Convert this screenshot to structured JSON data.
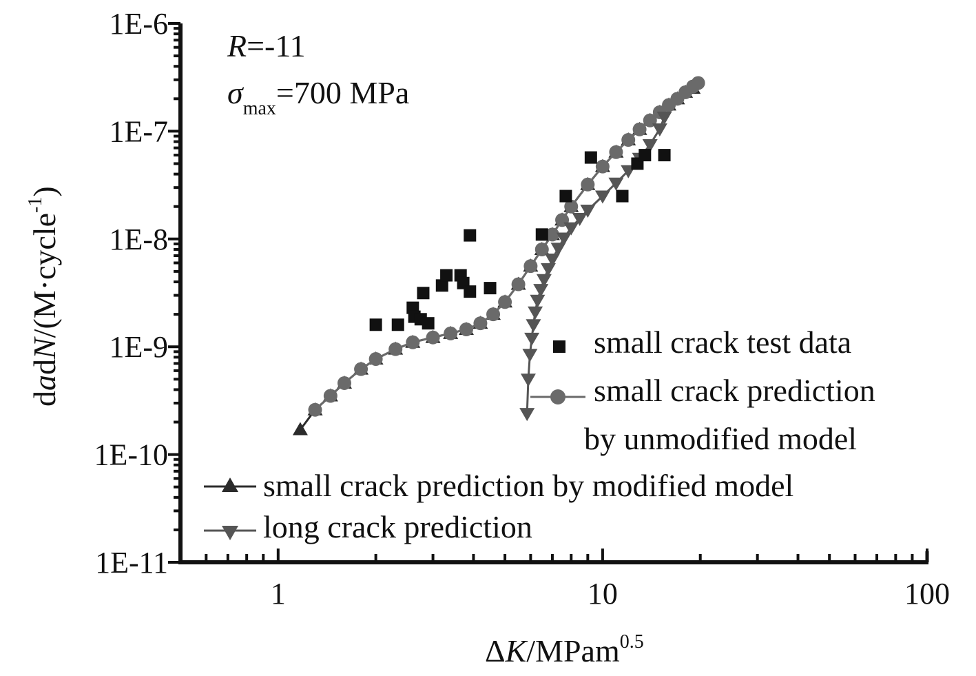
{
  "chart_data": {
    "type": "scatter",
    "xscale": "log",
    "yscale": "log",
    "xlim": [
      0.5,
      100
    ],
    "ylim": [
      1e-11,
      1e-06
    ],
    "x_ticks": [
      {
        "value": 1,
        "label": "1"
      },
      {
        "value": 10,
        "label": "10"
      },
      {
        "value": 100,
        "label": "100"
      }
    ],
    "y_ticks": [
      {
        "value": 1e-06,
        "label": "1E-6"
      },
      {
        "value": 1e-07,
        "label": "1E-7"
      },
      {
        "value": 1e-08,
        "label": "1E-8"
      },
      {
        "value": 1e-09,
        "label": "1E-9"
      },
      {
        "value": 1e-10,
        "label": "1E-10"
      },
      {
        "value": 1e-11,
        "label": "1E-11"
      }
    ],
    "xlabel": {
      "delta": "Δ",
      "var": "K",
      "unit": "/MPam",
      "sup": "0.5"
    },
    "ylabel": {
      "d1": "d",
      "a": "a",
      "d2": "d",
      "n": "N",
      "unit": "/(M·cycle",
      "sup": "-1",
      "close": ")"
    },
    "annotations": {
      "r_var": "R",
      "r_value": "=-11",
      "sigma": "σ",
      "sigma_sub": "max",
      "sigma_value": "=700 MPa"
    },
    "legend": {
      "test": "small crack test data",
      "unmod_1": "small crack prediction",
      "unmod_2": "by unmodified model",
      "modified": "small crack prediction by modified model",
      "long": "long crack prediction"
    },
    "colors": {
      "axis": "#111111",
      "test": "#111111",
      "modified": "#2b2b2b",
      "unmodified": "#6a6a6a",
      "long": "#555555"
    },
    "series": [
      {
        "name": "small crack test data",
        "marker": "square",
        "x": [
          2.0,
          2.34,
          2.6,
          2.63,
          2.75,
          2.8,
          2.9,
          3.2,
          3.3,
          3.65,
          3.72,
          3.9,
          3.9,
          4.5,
          6.5,
          7.7,
          9.2,
          11.5,
          12.8,
          13.5,
          15.5
        ],
        "y": [
          1.6e-09,
          1.6e-09,
          2.3e-09,
          1.9e-09,
          1.8e-09,
          3.15e-09,
          1.65e-09,
          3.7e-09,
          4.6e-09,
          4.6e-09,
          3.9e-09,
          3.25e-09,
          1.08e-08,
          3.5e-09,
          1.1e-08,
          2.5e-08,
          5.7e-08,
          2.5e-08,
          5e-08,
          6e-08,
          6e-08
        ]
      },
      {
        "name": "small crack prediction by unmodified model",
        "marker": "circle",
        "x": [
          1.3,
          1.45,
          1.6,
          1.8,
          2.0,
          2.3,
          2.6,
          3.0,
          3.4,
          3.8,
          4.2,
          4.6,
          5.0,
          5.5,
          6.0,
          6.5,
          7.0,
          7.5,
          8.0,
          9.0,
          10.0,
          11.0,
          12.0,
          13.0,
          14.0,
          15.0,
          16.0,
          17.0,
          18.0,
          19.0,
          19.7
        ],
        "y": [
          2.6e-10,
          3.5e-10,
          4.6e-10,
          6.2e-10,
          7.7e-10,
          9.5e-10,
          1.1e-09,
          1.22e-09,
          1.33e-09,
          1.45e-09,
          1.65e-09,
          2e-09,
          2.6e-09,
          3.8e-09,
          5.6e-09,
          8e-09,
          1.1e-08,
          1.5e-08,
          2e-08,
          3.2e-08,
          4.7e-08,
          6.4e-08,
          8.3e-08,
          1.04e-07,
          1.26e-07,
          1.5e-07,
          1.75e-07,
          2e-07,
          2.3e-07,
          2.6e-07,
          2.8e-07
        ]
      },
      {
        "name": "small crack prediction by modified model",
        "marker": "triangle-up",
        "x": [
          1.17,
          1.3,
          1.45,
          1.6,
          1.8,
          2.0,
          2.3,
          2.6,
          3.0,
          3.4,
          3.8,
          4.2,
          4.6,
          5.0,
          5.5,
          6.0,
          6.5,
          7.0,
          7.5,
          8.0,
          9.0,
          10.0,
          11.0,
          12.0,
          13.0,
          14.0,
          15.0,
          16.0,
          17.0,
          18.0,
          19.0
        ],
        "y": [
          1.7e-10,
          2.6e-10,
          3.5e-10,
          4.6e-10,
          6.2e-10,
          7.7e-10,
          9.5e-10,
          1.1e-09,
          1.22e-09,
          1.33e-09,
          1.45e-09,
          1.65e-09,
          2e-09,
          2.6e-09,
          3.8e-09,
          5.6e-09,
          8e-09,
          1.1e-08,
          1.5e-08,
          2e-08,
          3.2e-08,
          4.7e-08,
          6.4e-08,
          8.3e-08,
          1.04e-07,
          1.26e-07,
          1.5e-07,
          1.75e-07,
          2e-07,
          2.3e-07,
          2.5e-07
        ]
      },
      {
        "name": "long crack prediction",
        "marker": "triangle-down",
        "x": [
          5.85,
          5.9,
          5.97,
          6.05,
          6.12,
          6.2,
          6.3,
          6.45,
          6.6,
          6.8,
          7.0,
          7.3,
          7.6,
          8.0,
          8.5,
          9.0,
          10.0,
          11.0,
          12.0,
          13.0,
          14.0,
          15.0,
          15.5
        ],
        "y": [
          2.4e-10,
          5e-10,
          8.5e-10,
          1.2e-09,
          1.6e-09,
          2.1e-09,
          2.7e-09,
          3.4e-09,
          4.2e-09,
          5.3e-09,
          6.5e-09,
          8.2e-09,
          1.02e-08,
          1.27e-08,
          1.55e-08,
          1.85e-08,
          2.5e-08,
          3.3e-08,
          4.3e-08,
          5.6e-08,
          7.5e-08,
          1.05e-07,
          1.35e-07
        ]
      }
    ]
  }
}
